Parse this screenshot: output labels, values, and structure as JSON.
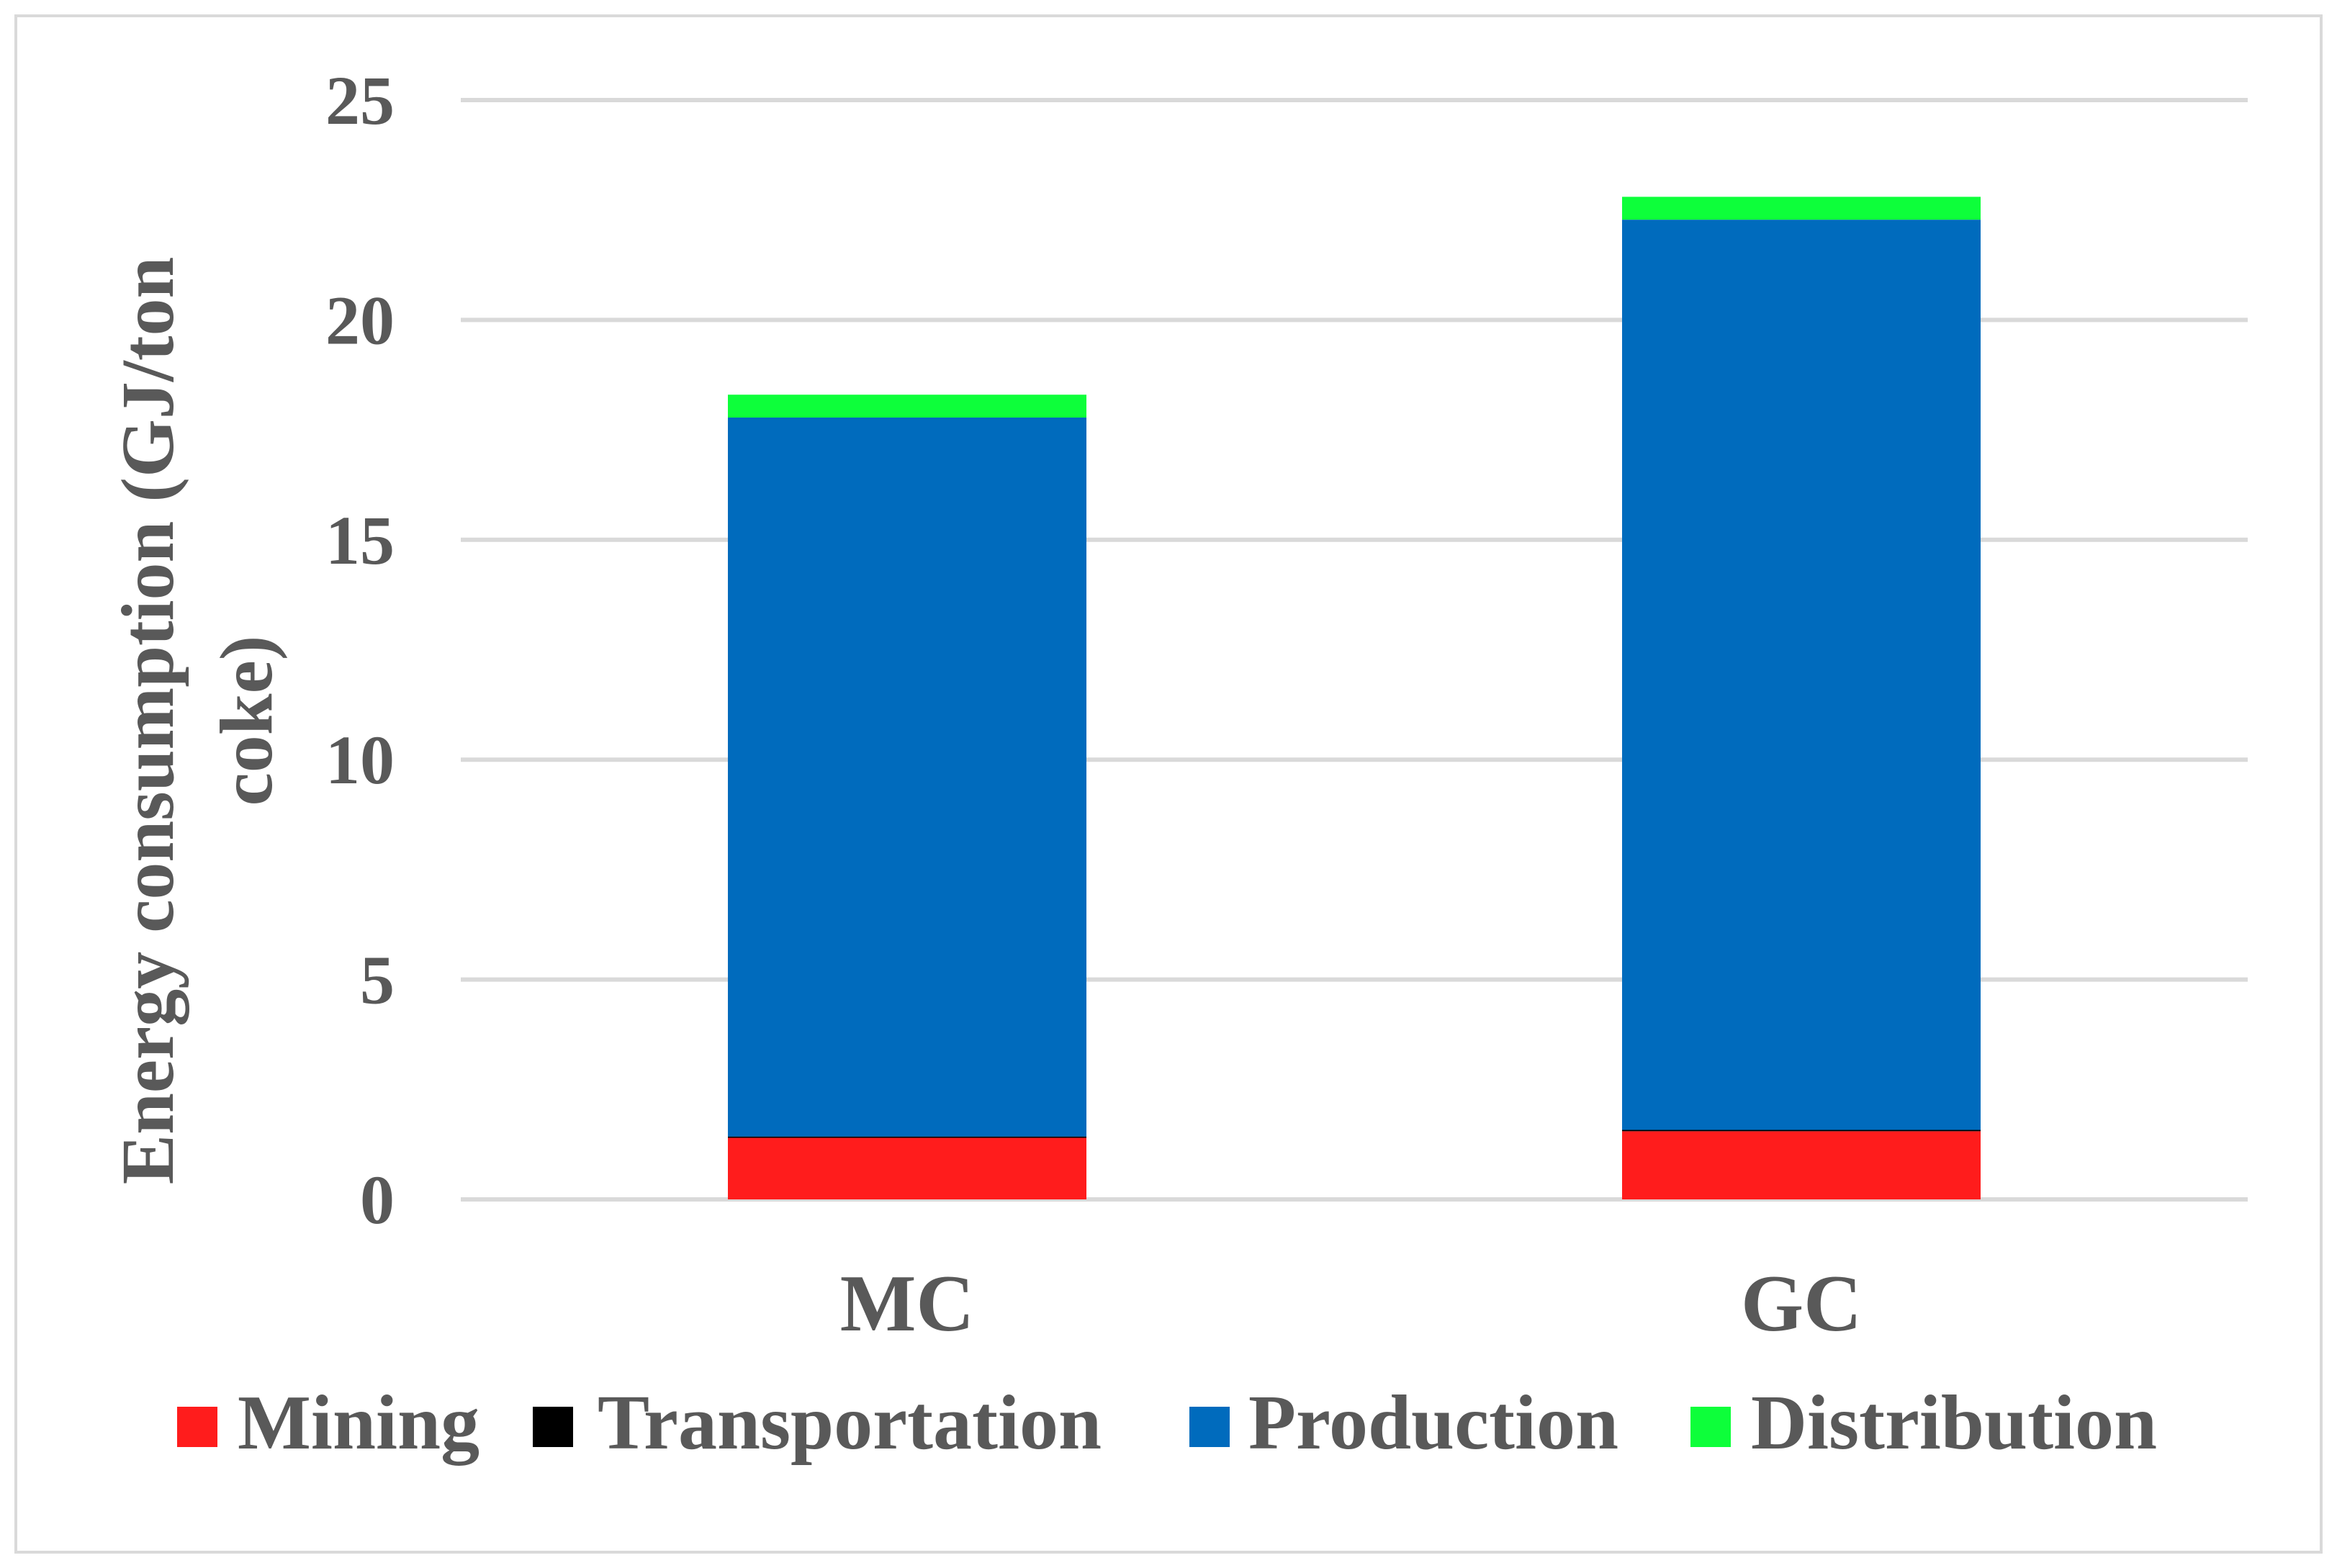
{
  "chart_data": {
    "type": "bar",
    "stacked": true,
    "title": "",
    "xlabel": "",
    "ylabel": "Energy consumption (GJ/ton coke)",
    "ylabel_lines": [
      "Energy consumption (GJ/ton",
      "coke)"
    ],
    "ylim": [
      0,
      25
    ],
    "yticks": [
      0,
      5,
      10,
      15,
      20,
      25
    ],
    "grid": true,
    "legend_position": "bottom",
    "categories": [
      "MC",
      "GC"
    ],
    "series": [
      {
        "name": "Mining",
        "color": "#ff1c1c",
        "values": [
          1.4,
          1.55
        ]
      },
      {
        "name": "Transportation",
        "color": "#000000",
        "values": [
          0.03,
          0.03
        ]
      },
      {
        "name": "Production",
        "color": "#006bbd",
        "values": [
          16.35,
          20.7
        ]
      },
      {
        "name": "Distribution",
        "color": "#0dff3a",
        "values": [
          0.52,
          0.52
        ]
      }
    ]
  }
}
